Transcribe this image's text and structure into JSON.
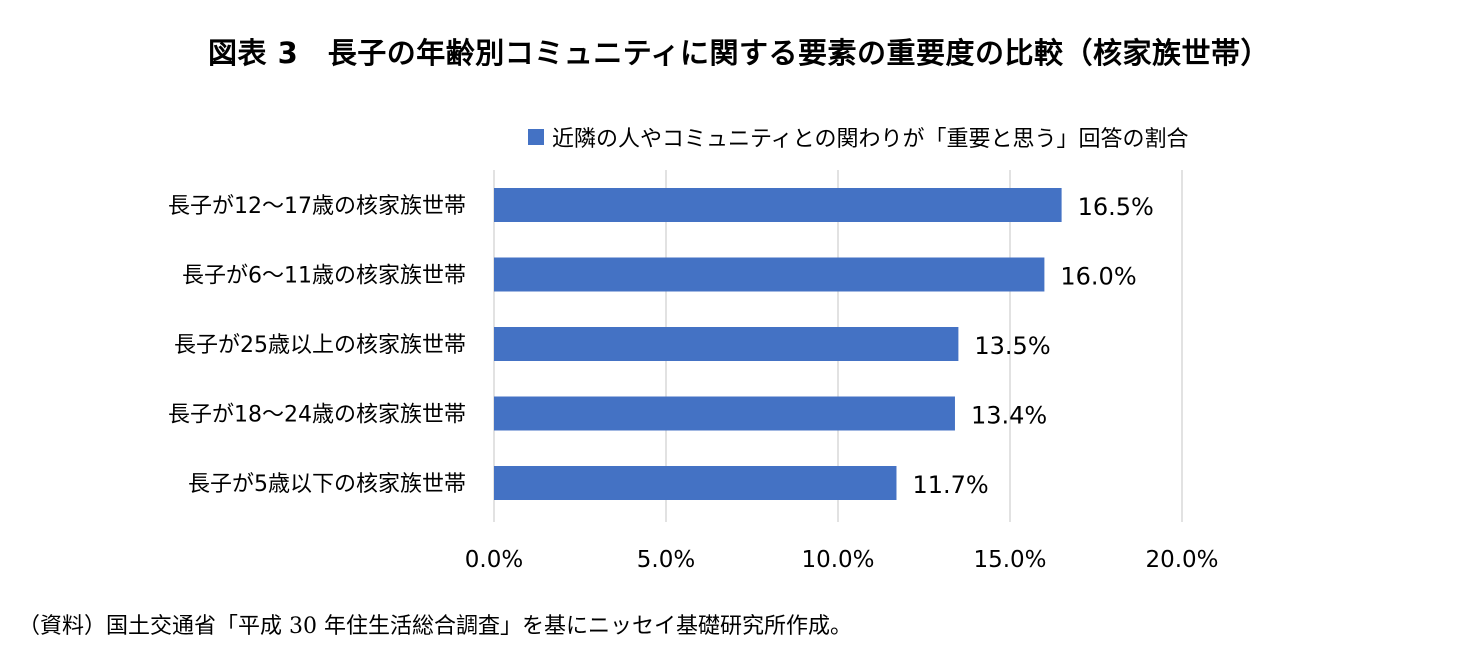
{
  "title": "図表 3　長子の年齢別コミュニティに関する要素の重要度の比較（核家族世帯）",
  "source_note": "（資料）国土交通省「平成 30 年住生活総合調査」を基にニッセイ基礎研究所作成。",
  "colors": {
    "bar": "#4472C4",
    "grid": "#D9D9D9"
  },
  "chart_data": {
    "type": "bar",
    "orientation": "horizontal",
    "title": "図表 3　長子の年齢別コミュニティに関する要素の重要度の比較（核家族世帯）",
    "legend_position": "top",
    "categories": [
      "長子が12〜17歳の核家族世帯",
      "長子が6〜11歳の核家族世帯",
      "長子が25歳以上の核家族世帯",
      "長子が18〜24歳の核家族世帯",
      "長子が5歳以下の核家族世帯"
    ],
    "series": [
      {
        "name": "近隣の人やコミュニティとの関わりが「重要と思う」回答の割合",
        "values": [
          16.5,
          16.0,
          13.5,
          13.4,
          11.7
        ],
        "labels": [
          "16.5%",
          "16.0%",
          "13.5%",
          "13.4%",
          "11.7%"
        ]
      }
    ],
    "xlim": [
      0,
      20
    ],
    "xticks": [
      0,
      5,
      10,
      15,
      20
    ],
    "xtick_labels": [
      "0.0%",
      "5.0%",
      "10.0%",
      "15.0%",
      "20.0%"
    ],
    "grid": true
  }
}
